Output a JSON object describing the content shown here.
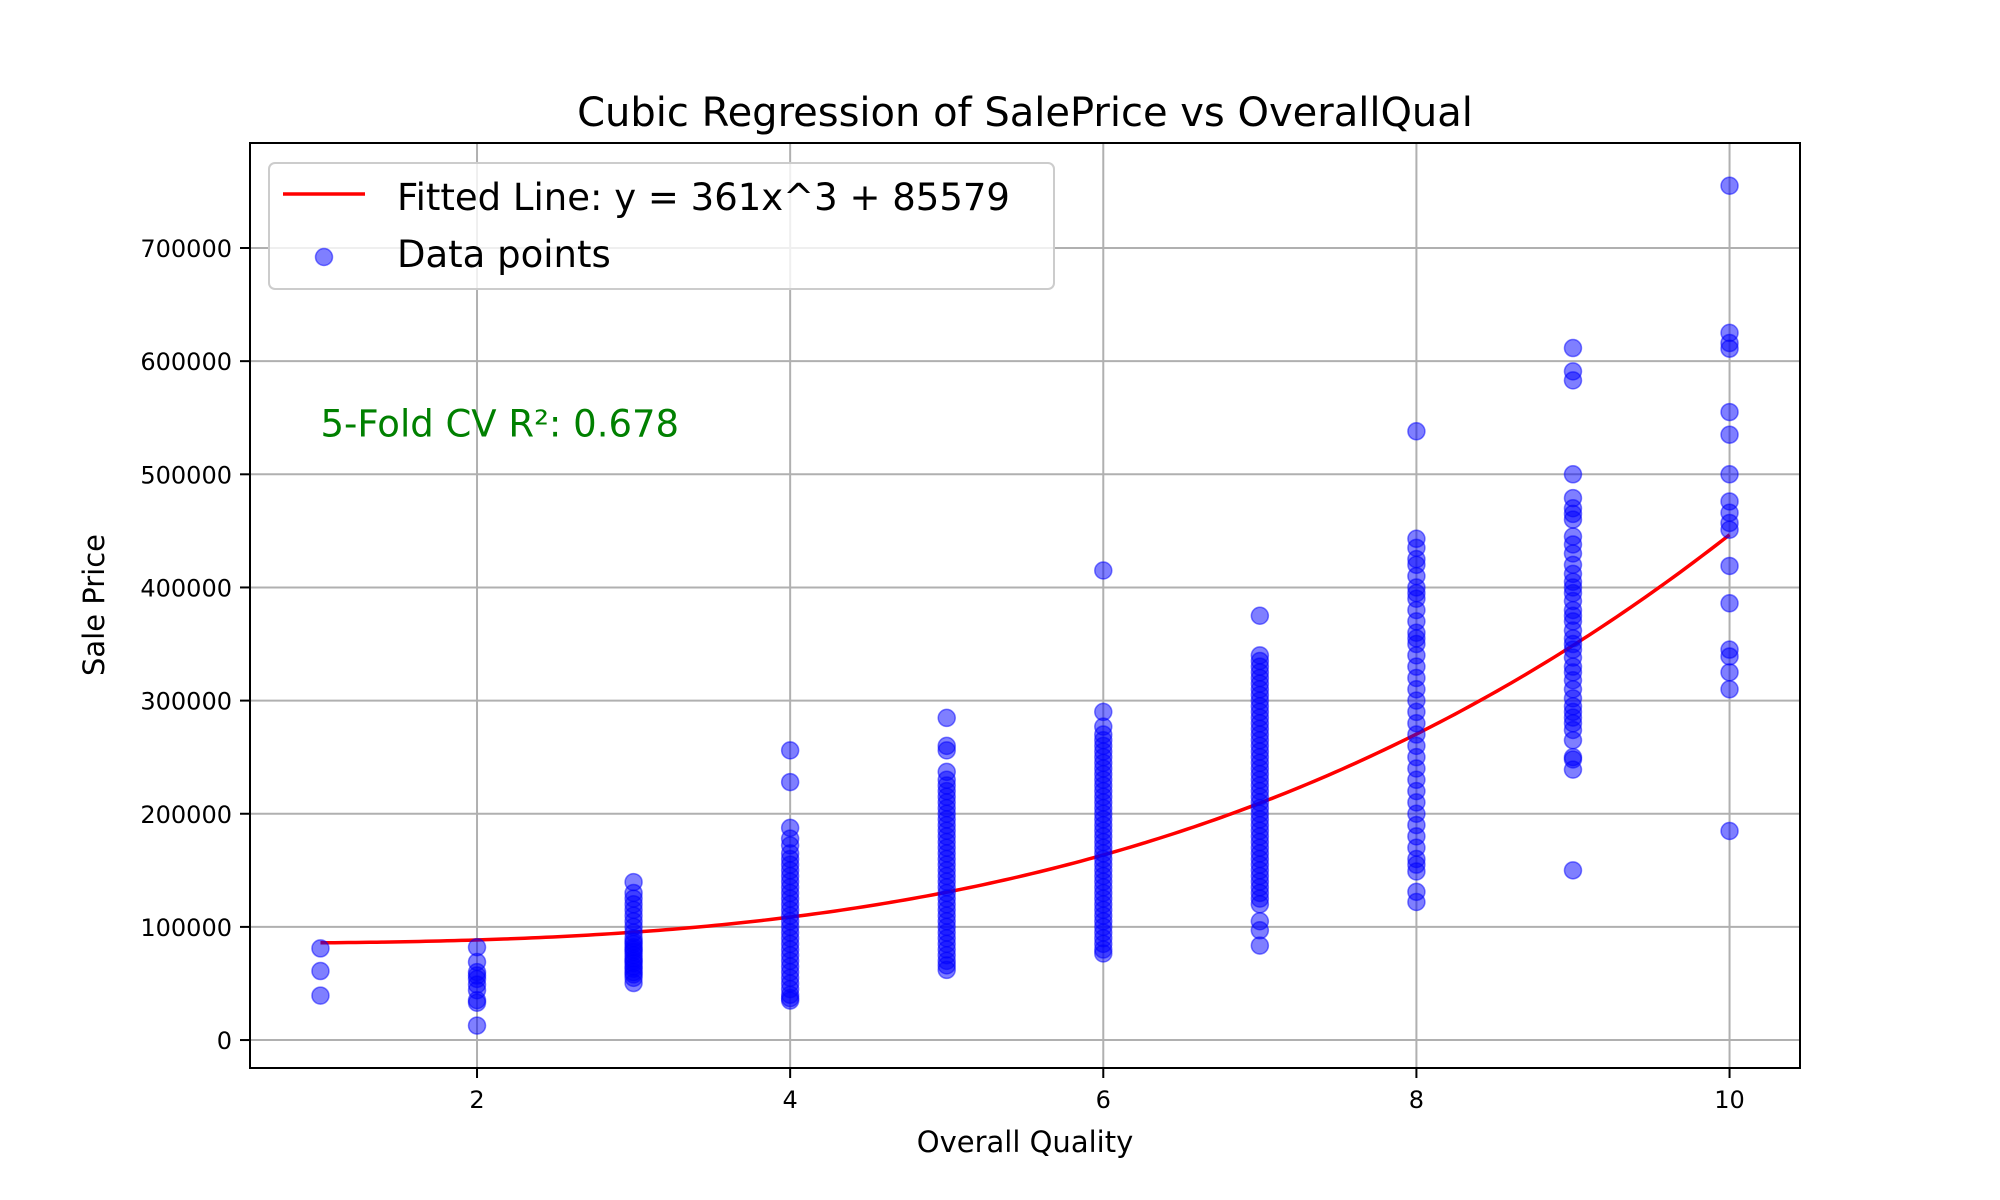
{
  "chart_data": {
    "type": "scatter",
    "title": "Cubic Regression of SalePrice vs OverallQual",
    "xlabel": "Overall Quality",
    "ylabel": "Sale Price",
    "xlim": [
      0.55,
      10.45
    ],
    "ylim": [
      -24700,
      792800
    ],
    "xticks": [
      2,
      4,
      6,
      8,
      10
    ],
    "xtick_labels": [
      "2",
      "4",
      "6",
      "8",
      "10"
    ],
    "yticks": [
      0,
      100000,
      200000,
      300000,
      400000,
      500000,
      600000,
      700000
    ],
    "ytick_labels": [
      "0",
      "100000",
      "200000",
      "300000",
      "400000",
      "500000",
      "600000",
      "700000"
    ],
    "grid": true,
    "legend": {
      "placement": "top-left",
      "entries": [
        {
          "label": "Fitted Line: y = 361x^3 + 85579",
          "kind": "line",
          "color": "#ff0000"
        },
        {
          "label": "Data points",
          "kind": "marker",
          "color": "#0000ff"
        }
      ]
    },
    "annotation": {
      "text": "5-Fold CV R²: 0.678",
      "color": "#008000",
      "x": 1.0,
      "y": 545000
    },
    "fitted_line": {
      "name": "Fitted Line",
      "equation": {
        "a3": 361,
        "c": 85579
      },
      "x_range": [
        1,
        10
      ],
      "color": "#ff0000"
    },
    "series": [
      {
        "name": "Data points",
        "color": "#0000ff",
        "alpha": 0.5,
        "points": [
          {
            "x": 1,
            "y": [
              81000,
              61000,
              39300
            ]
          },
          {
            "x": 2,
            "y": [
              82000,
              69000,
              60000,
              57000,
              54000,
              49000,
              44000,
              35300,
              33000,
              12789
            ]
          },
          {
            "x": 3,
            "y": [
              139600,
              130000,
              125000,
              120000,
              115000,
              110000,
              105000,
              100000,
              95000,
              90000,
              87000,
              85000,
              82000,
              80000,
              78000,
              75000,
              72000,
              70000,
              68000,
              65000,
              63000,
              60000,
              58000,
              55000,
              50400
            ]
          },
          {
            "x": 4,
            "y": [
              256000,
              228000,
              187500,
              178000,
              172000,
              165000,
              160000,
              155000,
              150000,
              145000,
              140000,
              135000,
              130000,
              125000,
              120000,
              115000,
              110000,
              105000,
              100000,
              95000,
              90000,
              85000,
              80000,
              75000,
              70000,
              65000,
              60000,
              55000,
              50000,
              45000,
              40000,
              37000,
              34900
            ]
          },
          {
            "x": 5,
            "y": [
              284700,
              260000,
              256000,
              237000,
              230000,
              225000,
              220000,
              215000,
              210000,
              205000,
              200000,
              195000,
              190000,
              185000,
              180000,
              175000,
              170000,
              165000,
              160000,
              155000,
              150000,
              145000,
              140000,
              135000,
              130000,
              125000,
              120000,
              115000,
              110000,
              105000,
              100000,
              95000,
              90000,
              85000,
              80000,
              75000,
              70000,
              66000,
              62000
            ]
          },
          {
            "x": 6,
            "y": [
              415000,
              290000,
              277000,
              270000,
              265000,
              260000,
              255000,
              250000,
              245000,
              240000,
              235000,
              230000,
              225000,
              220000,
              215000,
              210000,
              205000,
              200000,
              195000,
              190000,
              185000,
              180000,
              175000,
              170000,
              165000,
              160000,
              155000,
              150000,
              145000,
              140000,
              135000,
              130000,
              125000,
              120000,
              115000,
              110000,
              105000,
              100000,
              95000,
              90000,
              85000,
              80000,
              76500
            ]
          },
          {
            "x": 7,
            "y": [
              375000,
              340000,
              335000,
              330000,
              325000,
              320000,
              315000,
              310000,
              305000,
              300000,
              295000,
              290000,
              285000,
              280000,
              275000,
              270000,
              265000,
              260000,
              255000,
              250000,
              245000,
              240000,
              235000,
              230000,
              225000,
              220000,
              215000,
              210000,
              205000,
              200000,
              195000,
              190000,
              185000,
              180000,
              175000,
              170000,
              165000,
              160000,
              155000,
              150000,
              145000,
              140000,
              135000,
              130000,
              125000,
              120000,
              105000,
              97000,
              83500
            ]
          },
          {
            "x": 8,
            "y": [
              538000,
              443000,
              435000,
              425000,
              420000,
              410000,
              400000,
              395000,
              390000,
              380000,
              370000,
              360000,
              355000,
              350000,
              340000,
              330000,
              320000,
              310000,
              300000,
              290000,
              280000,
              270000,
              260000,
              250000,
              240000,
              230000,
              220000,
              210000,
              200000,
              190000,
              180000,
              170000,
              160000,
              155000,
              149000,
              131000,
              122000
            ]
          },
          {
            "x": 9,
            "y": [
              611600,
              591000,
              583000,
              500000,
              479000,
              470000,
              465000,
              460000,
              445000,
              438000,
              430000,
              420000,
              412000,
              405000,
              400000,
              395000,
              388000,
              380000,
              375000,
              370000,
              362000,
              355000,
              350000,
              345000,
              338000,
              330000,
              325000,
              318000,
              310000,
              302000,
              295000,
              290000,
              285000,
              280000,
              274000,
              265000,
              250000,
              248000,
              239000,
              150000
            ]
          },
          {
            "x": 10,
            "y": [
              755000,
              625000,
              616000,
              611000,
              555000,
              535000,
              500000,
              476000,
              466000,
              457000,
              451000,
              419000,
              386000,
              345000,
              339000,
              325000,
              310000,
              184750
            ]
          }
        ]
      }
    ]
  }
}
